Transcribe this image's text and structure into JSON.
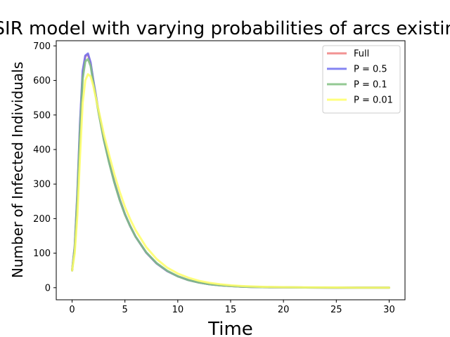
{
  "chart_data": {
    "type": "line",
    "title": "SIR model with varying probabilities of arcs existing",
    "xlabel": "Time",
    "ylabel": "Number of Infected Individuals",
    "xlim": [
      -1.5,
      31.5
    ],
    "ylim": [
      -35,
      715
    ],
    "xticks": [
      0,
      5,
      10,
      15,
      20,
      25,
      30
    ],
    "yticks": [
      0,
      100,
      200,
      300,
      400,
      500,
      600,
      700
    ],
    "grid": false,
    "legend_position": "top-right",
    "x": [
      0,
      0.25,
      0.5,
      0.75,
      1,
      1.25,
      1.5,
      1.75,
      2,
      2.5,
      3,
      3.5,
      4,
      4.5,
      5,
      5.5,
      6,
      7,
      8,
      9,
      10,
      11,
      12,
      13,
      14,
      15,
      16,
      17,
      18,
      20,
      22,
      25,
      28,
      30
    ],
    "series": [
      {
        "name": "Full",
        "color": "#f08080",
        "values": [
          50,
          120,
          270,
          470,
          620,
          670,
          675,
          650,
          600,
          510,
          430,
          365,
          305,
          255,
          212,
          178,
          148,
          102,
          70,
          48,
          33,
          22,
          15,
          10,
          7,
          5,
          3,
          2,
          1.5,
          1,
          0.5,
          0,
          0,
          0
        ]
      },
      {
        "name": "P = 0.5",
        "color": "#6f6ff0",
        "values": [
          50,
          120,
          275,
          478,
          628,
          672,
          678,
          652,
          602,
          512,
          431,
          366,
          306,
          256,
          213,
          178,
          148,
          102,
          70,
          48,
          33,
          22,
          15,
          10,
          7,
          5,
          3,
          2,
          1.5,
          1,
          0.5,
          0,
          0,
          0
        ]
      },
      {
        "name": "P = 0.1",
        "color": "#80c080",
        "values": [
          50,
          115,
          262,
          455,
          605,
          655,
          662,
          642,
          595,
          508,
          428,
          362,
          304,
          254,
          212,
          178,
          148,
          103,
          71,
          49,
          33,
          22,
          15,
          10,
          7,
          5,
          3,
          2,
          1.5,
          1,
          0.5,
          0,
          0,
          0
        ]
      },
      {
        "name": "P = 0.01",
        "color": "#ffff66",
        "values": [
          50,
          100,
          210,
          380,
          535,
          600,
          618,
          612,
          585,
          515,
          445,
          385,
          328,
          278,
          234,
          198,
          167,
          118,
          83,
          58,
          41,
          29,
          20,
          14,
          10,
          7,
          5,
          3.5,
          2.5,
          1.5,
          1,
          0.5,
          0,
          0
        ]
      }
    ]
  }
}
